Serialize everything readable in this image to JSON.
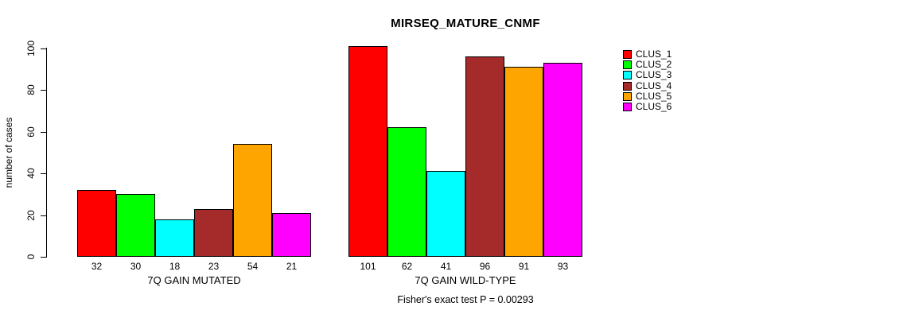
{
  "chart_data": {
    "type": "bar",
    "title": "MIRSEQ_MATURE_CNMF",
    "ylabel": "number of cases",
    "xlabel": "",
    "ylim": [
      0,
      100
    ],
    "yticks": [
      0,
      20,
      40,
      60,
      80,
      100
    ],
    "grid": false,
    "bar_value_labels": true,
    "legend_position": "right",
    "categories": [
      "7Q GAIN MUTATED",
      "7Q GAIN WILD-TYPE"
    ],
    "series": [
      {
        "name": "CLUS_1",
        "color": "#FF0000",
        "values": [
          32,
          101
        ]
      },
      {
        "name": "CLUS_2",
        "color": "#00FF00",
        "values": [
          30,
          62
        ]
      },
      {
        "name": "CLUS_3",
        "color": "#00FFFF",
        "values": [
          18,
          41
        ]
      },
      {
        "name": "CLUS_4",
        "color": "#A52A2A",
        "values": [
          23,
          96
        ]
      },
      {
        "name": "CLUS_5",
        "color": "#FFA500",
        "values": [
          54,
          91
        ]
      },
      {
        "name": "CLUS_6",
        "color": "#FF00FF",
        "values": [
          21,
          93
        ]
      }
    ],
    "annotation": "Fisher's exact test P = 0.00293"
  }
}
